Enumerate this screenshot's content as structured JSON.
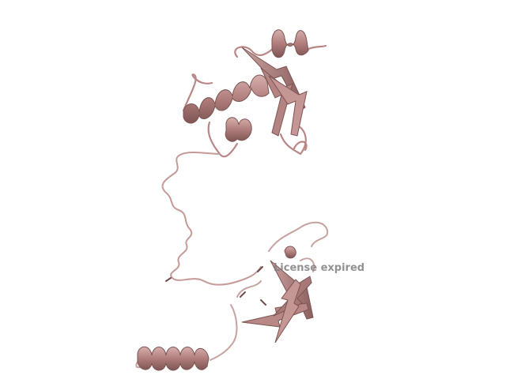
{
  "viewer": {
    "background_color": "#ffffff",
    "cartoon_color": "#c08c8a",
    "cartoon_dark": "#8a5f5e",
    "cartoon_light": "#d6b0ae",
    "watermark_text": "License expired"
  }
}
